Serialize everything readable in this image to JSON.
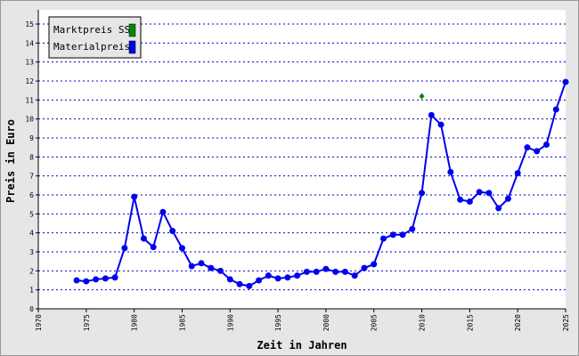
{
  "chart_data": {
    "type": "line",
    "x_label": "Zeit in Jahren",
    "y_label": "Preis in Euro",
    "x": [
      1974,
      1975,
      1976,
      1977,
      1978,
      1979,
      1980,
      1981,
      1982,
      1983,
      1984,
      1985,
      1986,
      1987,
      1988,
      1989,
      1990,
      1991,
      1992,
      1993,
      1994,
      1995,
      1996,
      1997,
      1998,
      1999,
      2000,
      2001,
      2002,
      2003,
      2004,
      2005,
      2006,
      2007,
      2008,
      2009,
      2010,
      2011,
      2012,
      2013,
      2014,
      2015,
      2016,
      2017,
      2018,
      2019,
      2020,
      2021,
      2022,
      2023,
      2024,
      2025
    ],
    "series": [
      {
        "name": "Marktpreis SS",
        "color": "#008800",
        "marker": "diamond",
        "line": false,
        "values": [
          null,
          null,
          null,
          null,
          null,
          null,
          null,
          null,
          null,
          null,
          null,
          null,
          null,
          null,
          null,
          null,
          null,
          null,
          null,
          null,
          null,
          null,
          null,
          null,
          null,
          null,
          null,
          null,
          null,
          null,
          null,
          null,
          null,
          null,
          null,
          null,
          11.2,
          null,
          null,
          null,
          null,
          null,
          null,
          null,
          null,
          null,
          null,
          null,
          null,
          null,
          null,
          null
        ]
      },
      {
        "name": "Materialpreis",
        "color": "#0000ee",
        "marker": "circle",
        "line": true,
        "values": [
          1.5,
          1.45,
          1.55,
          1.6,
          1.65,
          3.2,
          5.9,
          3.7,
          3.25,
          5.1,
          4.1,
          3.2,
          2.25,
          2.4,
          2.15,
          2.0,
          1.55,
          1.3,
          1.2,
          1.5,
          1.75,
          1.6,
          1.65,
          1.75,
          1.95,
          1.95,
          2.1,
          1.95,
          1.95,
          1.75,
          2.15,
          2.35,
          3.7,
          3.9,
          3.9,
          4.2,
          6.1,
          10.2,
          9.7,
          7.2,
          5.75,
          5.65,
          6.15,
          6.1,
          5.3,
          5.8,
          7.15,
          8.5,
          8.3,
          8.65,
          10.5,
          11.95
        ]
      }
    ],
    "xlim": [
      1970,
      2025
    ],
    "xticks": [
      1970,
      1975,
      1980,
      1985,
      1990,
      1995,
      2000,
      2005,
      2010,
      2015,
      2020,
      2025
    ],
    "ylim": [
      0,
      15
    ],
    "yticks": [
      0,
      1,
      2,
      3,
      4,
      5,
      6,
      7,
      8,
      9,
      10,
      11,
      12,
      13,
      14,
      15
    ],
    "grid": true,
    "legend": "top-left"
  }
}
